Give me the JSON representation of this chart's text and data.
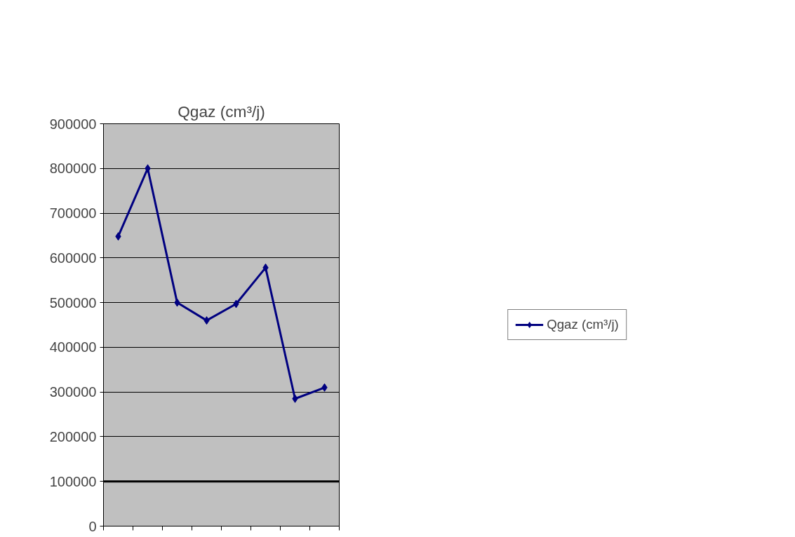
{
  "chart_data": {
    "type": "line",
    "title": "Qgaz (cm³/j)",
    "categories": [
      null,
      null,
      null,
      null,
      null,
      null,
      null,
      null
    ],
    "series": [
      {
        "name": "Qgaz (cm³/j)",
        "color": "#000080",
        "values": [
          648000,
          800000,
          500000,
          460000,
          497000,
          578000,
          285000,
          310000
        ]
      }
    ],
    "ylim": [
      0,
      900000
    ],
    "yticks": [
      0,
      100000,
      200000,
      300000,
      400000,
      500000,
      600000,
      700000,
      800000,
      900000
    ],
    "ref_lines": [
      {
        "axis": "y",
        "value": 100000,
        "label": null,
        "color": "#000000"
      }
    ],
    "grid": "y",
    "legend": "right",
    "marker": "diamond",
    "line_style": "solid"
  }
}
